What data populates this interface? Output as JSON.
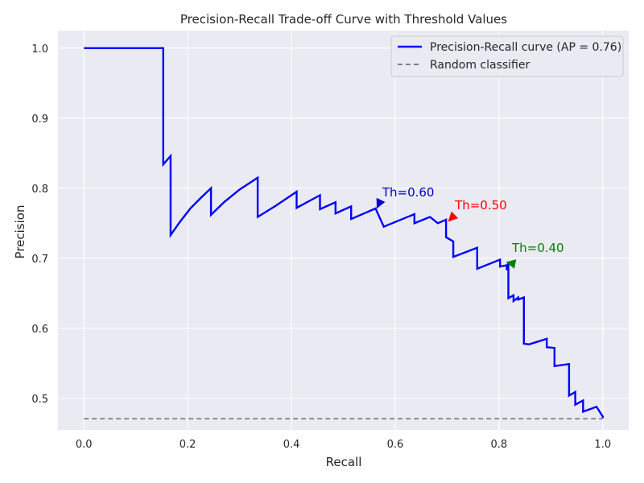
{
  "chart_data": {
    "type": "line",
    "title": "Precision-Recall Trade-off Curve with Threshold Values",
    "xlabel": "Recall",
    "ylabel": "Precision",
    "xlim": [
      -0.05,
      1.05
    ],
    "ylim": [
      0.455,
      1.025
    ],
    "grid": true,
    "legend_position": "top-right",
    "x_ticks": [
      0.0,
      0.2,
      0.4,
      0.6,
      0.8,
      1.0
    ],
    "x_tick_labels": [
      "0.0",
      "0.2",
      "0.4",
      "0.6",
      "0.8",
      "1.0"
    ],
    "y_ticks": [
      0.5,
      0.6,
      0.7,
      0.8,
      0.9,
      1.0
    ],
    "y_tick_labels": [
      "0.5",
      "0.6",
      "0.7",
      "0.8",
      "0.9",
      "1.0"
    ],
    "series": [
      {
        "name": "Precision-Recall curve (AP = 0.76)",
        "color": "#0000ff",
        "style": "solid",
        "x": [
          0.0,
          0.153,
          0.153,
          0.167,
          0.167,
          0.185,
          0.205,
          0.225,
          0.245,
          0.245,
          0.27,
          0.3,
          0.335,
          0.335,
          0.37,
          0.41,
          0.41,
          0.455,
          0.455,
          0.485,
          0.485,
          0.515,
          0.515,
          0.562,
          0.578,
          0.637,
          0.637,
          0.667,
          0.682,
          0.698,
          0.698,
          0.712,
          0.712,
          0.758,
          0.758,
          0.802,
          0.802,
          0.815,
          0.815,
          0.818,
          0.818,
          0.828,
          0.828,
          0.837,
          0.837,
          0.848,
          0.848,
          0.858,
          0.892,
          0.892,
          0.907,
          0.907,
          0.935,
          0.935,
          0.947,
          0.947,
          0.962,
          0.962,
          0.988,
          1.0,
          1.0
        ],
        "y": [
          1.0,
          1.0,
          0.834,
          0.846,
          0.733,
          0.752,
          0.771,
          0.786,
          0.8,
          0.762,
          0.78,
          0.798,
          0.815,
          0.759,
          0.775,
          0.795,
          0.772,
          0.79,
          0.77,
          0.78,
          0.764,
          0.774,
          0.756,
          0.771,
          0.745,
          0.763,
          0.75,
          0.759,
          0.75,
          0.755,
          0.73,
          0.724,
          0.702,
          0.715,
          0.685,
          0.698,
          0.688,
          0.69,
          0.683,
          0.694,
          0.643,
          0.647,
          0.639,
          0.644,
          0.641,
          0.644,
          0.578,
          0.577,
          0.585,
          0.573,
          0.572,
          0.546,
          0.549,
          0.504,
          0.509,
          0.491,
          0.497,
          0.481,
          0.488,
          0.474,
          0.472
        ]
      },
      {
        "name": "Random classifier",
        "color": "#808080",
        "style": "dashed",
        "x": [
          0.0,
          1.0
        ],
        "y": [
          0.471,
          0.471
        ]
      }
    ],
    "annotations": [
      {
        "text": "Th=0.60",
        "color": "#0000cc",
        "point": [
          0.562,
          0.771
        ],
        "text_at": [
          0.575,
          0.788
        ]
      },
      {
        "text": "Th=0.50",
        "color": "#ff0000",
        "point": [
          0.7,
          0.752
        ],
        "text_at": [
          0.715,
          0.77
        ]
      },
      {
        "text": "Th=0.40",
        "color": "#008000",
        "point": [
          0.812,
          0.693
        ],
        "text_at": [
          0.825,
          0.709
        ]
      }
    ]
  }
}
